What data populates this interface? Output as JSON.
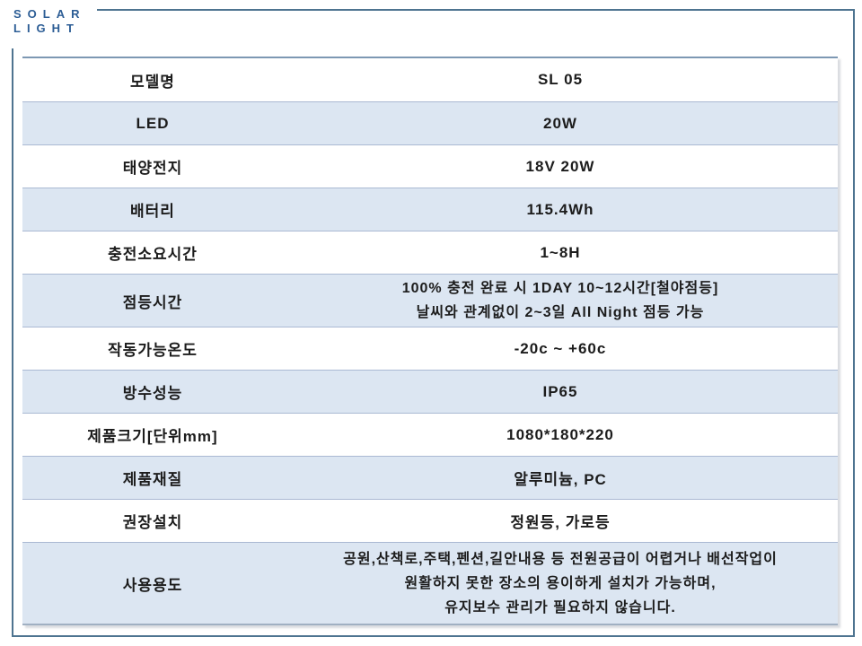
{
  "logo": {
    "line1": "SOLAR",
    "line2": "LIGHT"
  },
  "table": {
    "rows": [
      {
        "label": "모델명",
        "value": "SL 05",
        "banded": false
      },
      {
        "label": "LED",
        "value": "20W",
        "banded": true
      },
      {
        "label": "태양전지",
        "value": "18V 20W",
        "banded": false
      },
      {
        "label": "배터리",
        "value": "115.4Wh",
        "banded": true
      },
      {
        "label": "충전소요시간",
        "value": "1~8H",
        "banded": false
      },
      {
        "label": "점등시간",
        "value": "100% 충전 완료 시 1DAY 10~12시간[철야점등]\n날씨와 관계없이 2~3일 All Night 점등 가능",
        "banded": true
      },
      {
        "label": "작동가능온도",
        "value": "-20c ~ +60c",
        "banded": false
      },
      {
        "label": "방수성능",
        "value": "IP65",
        "banded": true
      },
      {
        "label": "제품크기[단위mm]",
        "value": "1080*180*220",
        "banded": false
      },
      {
        "label": "제품재질",
        "value": "알루미늄, PC",
        "banded": true
      },
      {
        "label": "권장설치",
        "value": "정원등, 가로등",
        "banded": false
      },
      {
        "label": "사용용도",
        "value": "공원,산책로,주택,펜션,길안내용 등 전원공급이 어렵거나 배선작업이\n원활하지 못한 장소의 용이하게 설치가 가능하며,\n유지보수 관리가 필요하지 않습니다.",
        "banded": true
      }
    ]
  },
  "colors": {
    "logo_blue": "#2c5d95",
    "frame_border": "#4e7490",
    "band_fill": "#dce6f2",
    "row_border": "#aab9d3",
    "table_top_border": "#7d98b3",
    "table_bottom_border": "#a0b0c2",
    "text": "#1c1c1c"
  }
}
